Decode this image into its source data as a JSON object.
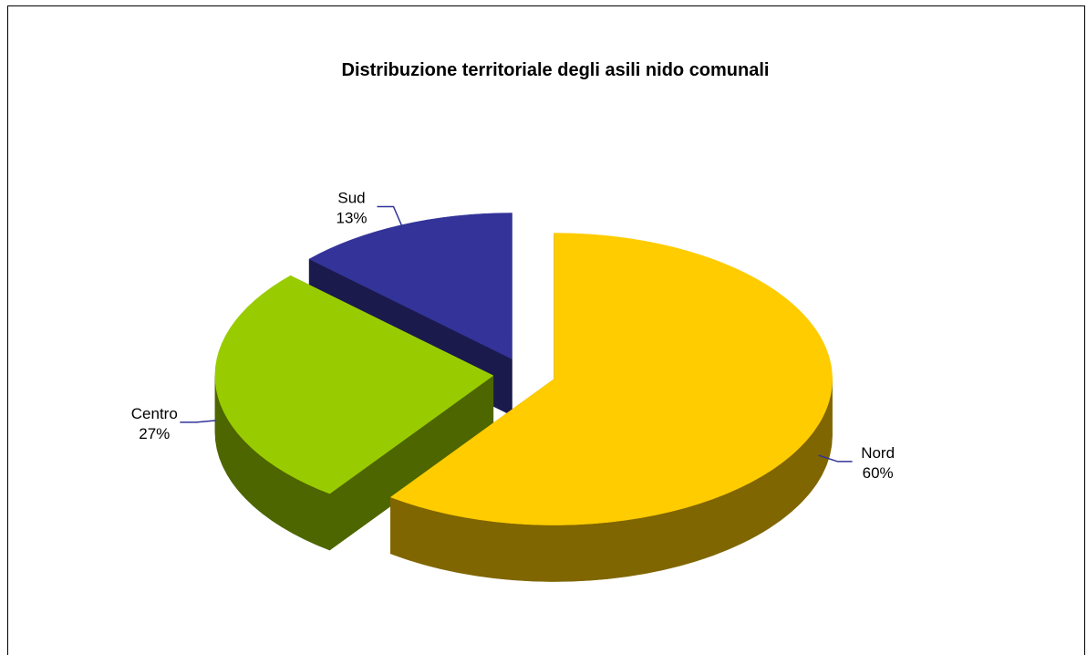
{
  "chart_data": {
    "type": "pie",
    "title": "Distribuzione territoriale degli asili nido comunali",
    "three_d": true,
    "exploded": true,
    "categories": [
      "Nord",
      "Centro",
      "Sud"
    ],
    "values": [
      60,
      27,
      13
    ],
    "unit": "%",
    "labels": [
      {
        "name": "Nord",
        "value_text": "60%"
      },
      {
        "name": "Centro",
        "value_text": "27%"
      },
      {
        "name": "Sud",
        "value_text": "13%"
      }
    ],
    "colors": {
      "Nord": {
        "top": "#ffcc00",
        "side": "#806600"
      },
      "Centro": {
        "top": "#99cc00",
        "side": "#4d6600"
      },
      "Sud": {
        "top": "#333399",
        "side": "#1a1a4d"
      }
    },
    "leader_line_color": "#333399",
    "legend": "none"
  }
}
